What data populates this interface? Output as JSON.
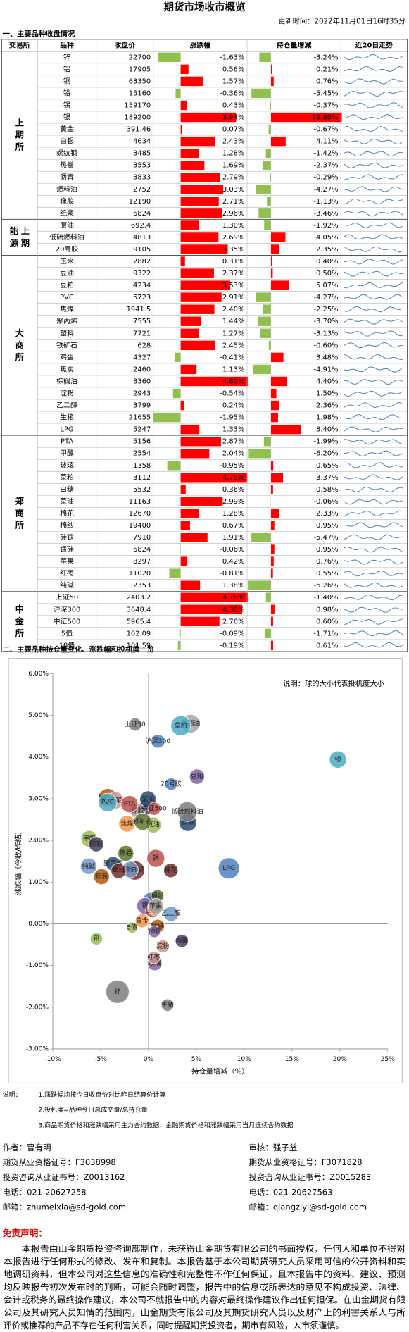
{
  "header": {
    "title": "期货市场收市概览",
    "update_time": "更新时间：2022年11月01日16时35分"
  },
  "section1": "一、主要品种收盘情况",
  "table": {
    "columns": [
      "交易所",
      "品种",
      "收盘价",
      "涨跌幅",
      "持仓量增减",
      "近20日走势"
    ],
    "groups": [
      {
        "exchange": [
          "上",
          "期",
          "所"
        ],
        "rows": [
          {
            "name": "锌",
            "close": "22700",
            "change": -1.63,
            "change_label": "-1.63%",
            "oi": -3.24,
            "oi_label": "-3.24%",
            "spec": 2.4
          },
          {
            "name": "铝",
            "close": "17905",
            "change": 0.56,
            "change_label": "0.56%",
            "oi": 0.21,
            "oi_label": "0.21%",
            "spec": 1.3
          },
          {
            "name": "铜",
            "close": "63350",
            "change": 1.57,
            "change_label": "1.57%",
            "oi": 0.76,
            "oi_label": "0.76%",
            "spec": 1.6
          },
          {
            "name": "铅",
            "close": "15160",
            "change": -0.36,
            "change_label": "-0.36%",
            "oi": -5.45,
            "oi_label": "-5.45%",
            "spec": 0.8
          },
          {
            "name": "锡",
            "close": "159170",
            "change": 0.43,
            "change_label": "0.43%",
            "oi": -0.37,
            "oi_label": "-0.37%",
            "spec": 1.4
          },
          {
            "name": "银",
            "close": "189200",
            "change": 3.94,
            "change_label": "3.94%",
            "oi": 19.8,
            "oi_label": "19.80%",
            "spec": 1.5
          },
          {
            "name": "黄金",
            "close": "391.46",
            "change": 0.07,
            "change_label": "0.07%",
            "oi": -0.67,
            "oi_label": "-0.67%",
            "spec": 1.0
          },
          {
            "name": "白银",
            "close": "4634",
            "change": 2.43,
            "change_label": "2.43%",
            "oi": 4.11,
            "oi_label": "4.11%",
            "spec": 1.6
          },
          {
            "name": "螺纹钢",
            "close": "3485",
            "change": 1.28,
            "change_label": "1.28%",
            "oi": -1.42,
            "oi_label": "-1.42%",
            "spec": 1.8
          },
          {
            "name": "热卷",
            "close": "3553",
            "change": 1.69,
            "change_label": "1.69%",
            "oi": -2.37,
            "oi_label": "-2.37%",
            "spec": 1.3
          },
          {
            "name": "沥青",
            "close": "3833",
            "change": 2.79,
            "change_label": "2.79%",
            "oi": -0.29,
            "oi_label": "-0.29%",
            "spec": 1.2
          },
          {
            "name": "燃料油",
            "close": "2752",
            "change": 3.03,
            "change_label": "3.03%",
            "oi": -4.27,
            "oi_label": "-4.27%",
            "spec": 1.6
          },
          {
            "name": "橡胶",
            "close": "12190",
            "change": 2.71,
            "change_label": "2.71%",
            "oi": -1.13,
            "oi_label": "-1.13%",
            "spec": 1.2
          },
          {
            "name": "纸浆",
            "close": "6824",
            "change": 2.96,
            "change_label": "2.96%",
            "oi": -3.46,
            "oi_label": "-3.46%",
            "spec": 1.5
          }
        ]
      },
      {
        "exchange": [
          "能 上",
          "源 期"
        ],
        "rows": [
          {
            "name": "原油",
            "close": "692.4",
            "change": 1.3,
            "change_label": "1.30%",
            "oi": -1.92,
            "oi_label": "-1.92%",
            "spec": 1.4
          },
          {
            "name": "低硫燃料油",
            "close": "4813",
            "change": 2.69,
            "change_label": "2.69%",
            "oi": 4.05,
            "oi_label": "4.05%",
            "spec": 1.9
          },
          {
            "name": "20号胶",
            "close": "9105",
            "change": 3.35,
            "change_label": "3.35%",
            "oi": 2.35,
            "oi_label": "2.35%",
            "spec": 0.8
          }
        ]
      },
      {
        "exchange": [
          "大",
          "商",
          "所"
        ],
        "rows": [
          {
            "name": "玉米",
            "close": "2882",
            "change": 0.31,
            "change_label": "0.31%",
            "oi": 0.4,
            "oi_label": "0.40%",
            "spec": 1.0
          },
          {
            "name": "豆油",
            "close": "9322",
            "change": 2.37,
            "change_label": "2.37%",
            "oi": 0.5,
            "oi_label": "0.50%",
            "spec": 1.3
          },
          {
            "name": "豆粕",
            "close": "4234",
            "change": 3.53,
            "change_label": "3.53%",
            "oi": 5.07,
            "oi_label": "5.07%",
            "spec": 1.2
          },
          {
            "name": "PVC",
            "close": "5723",
            "change": 2.91,
            "change_label": "2.91%",
            "oi": -4.27,
            "oi_label": "-4.27%",
            "spec": 1.7
          },
          {
            "name": "焦煤",
            "close": "1941.5",
            "change": 2.4,
            "change_label": "2.40%",
            "oi": -2.25,
            "oi_label": "-2.25%",
            "spec": 1.4
          },
          {
            "name": "聚丙烯",
            "close": "7555",
            "change": 1.44,
            "change_label": "1.44%",
            "oi": -3.7,
            "oi_label": "-3.70%",
            "spec": 1.1
          },
          {
            "name": "塑料",
            "close": "7721",
            "change": 1.27,
            "change_label": "1.27%",
            "oi": -3.13,
            "oi_label": "-3.13%",
            "spec": 1.2
          },
          {
            "name": "铁矿石",
            "close": "628",
            "change": 2.45,
            "change_label": "2.45%",
            "oi": -0.6,
            "oi_label": "-0.60%",
            "spec": 1.5
          },
          {
            "name": "鸡蛋",
            "close": "4327",
            "change": -0.41,
            "change_label": "-0.41%",
            "oi": 3.48,
            "oi_label": "3.48%",
            "spec": 0.9
          },
          {
            "name": "焦炭",
            "close": "2460",
            "change": 1.13,
            "change_label": "1.13%",
            "oi": -4.91,
            "oi_label": "-4.91%",
            "spec": 1.3
          },
          {
            "name": "棕榈油",
            "close": "8360",
            "change": 4.8,
            "change_label": "4.80%",
            "oi": 4.4,
            "oi_label": "4.40%",
            "spec": 1.7
          },
          {
            "name": "淀粉",
            "close": "2943",
            "change": -0.54,
            "change_label": "-0.54%",
            "oi": 1.5,
            "oi_label": "1.50%",
            "spec": 0.9
          },
          {
            "name": "乙二醇",
            "close": "3799",
            "change": 0.24,
            "change_label": "0.24%",
            "oi": 2.36,
            "oi_label": "2.36%",
            "spec": 1.2
          },
          {
            "name": "生猪",
            "close": "21655",
            "change": -1.95,
            "change_label": "-1.95%",
            "oi": 1.98,
            "oi_label": "1.98%",
            "spec": 0.8
          },
          {
            "name": "LPG",
            "close": "5247",
            "change": 1.33,
            "change_label": "1.33%",
            "oi": 8.4,
            "oi_label": "8.40%",
            "spec": 2.1
          }
        ]
      },
      {
        "exchange": [
          "郑",
          "商",
          "所"
        ],
        "rows": [
          {
            "name": "PTA",
            "close": "5156",
            "change": 2.87,
            "change_label": "2.87%",
            "oi": -1.99,
            "oi_label": "-1.99%",
            "spec": 1.5
          },
          {
            "name": "甲醇",
            "close": "2554",
            "change": 2.04,
            "change_label": "2.04%",
            "oi": -6.2,
            "oi_label": "-6.20%",
            "spec": 1.4
          },
          {
            "name": "玻璃",
            "close": "1358",
            "change": -0.95,
            "change_label": "-0.95%",
            "oi": 0.65,
            "oi_label": "0.65%",
            "spec": 1.1
          },
          {
            "name": "菜粕",
            "close": "3112",
            "change": 4.75,
            "change_label": "4.75%",
            "oi": 3.37,
            "oi_label": "3.37%",
            "spec": 1.9
          },
          {
            "name": "白糖",
            "close": "5532",
            "change": 0.36,
            "change_label": "0.36%",
            "oi": 0.58,
            "oi_label": "0.58%",
            "spec": 0.9
          },
          {
            "name": "菜油",
            "close": "11163",
            "change": 2.99,
            "change_label": "2.99%",
            "oi": -0.06,
            "oi_label": "-0.06%",
            "spec": 1.4
          },
          {
            "name": "棉花",
            "close": "12670",
            "change": 1.28,
            "change_label": "1.28%",
            "oi": 2.33,
            "oi_label": "2.33%",
            "spec": 1.1
          },
          {
            "name": "棉纱",
            "close": "19400",
            "change": 0.67,
            "change_label": "0.67%",
            "oi": 0.95,
            "oi_label": "0.95%",
            "spec": 0.8
          },
          {
            "name": "硅铁",
            "close": "7910",
            "change": 1.91,
            "change_label": "1.91%",
            "oi": -5.47,
            "oi_label": "-5.47%",
            "spec": 1.2
          },
          {
            "name": "锰硅",
            "close": "6824",
            "change": -0.06,
            "change_label": "-0.06%",
            "oi": 0.95,
            "oi_label": "0.95%",
            "spec": 1.0
          },
          {
            "name": "苹果",
            "close": "8297",
            "change": 0.42,
            "change_label": "0.42%",
            "oi": 0.76,
            "oi_label": "0.76%",
            "spec": 1.3
          },
          {
            "name": "红枣",
            "close": "11020",
            "change": -0.81,
            "change_label": "-0.81%",
            "oi": 0.55,
            "oi_label": "0.55%",
            "spec": 0.8
          },
          {
            "name": "纯碱",
            "close": "2353",
            "change": 1.38,
            "change_label": "1.38%",
            "oi": -6.26,
            "oi_label": "-6.26%",
            "spec": 1.4
          }
        ]
      },
      {
        "exchange": [
          "中",
          "金",
          "所"
        ],
        "rows": [
          {
            "name": "上证50",
            "close": "2403.2",
            "change": 4.78,
            "change_label": "4.78%",
            "oi": -1.4,
            "oi_label": "-1.40%",
            "spec": 0.9
          },
          {
            "name": "沪深300",
            "close": "3648.4",
            "change": 4.38,
            "change_label": "4.38%",
            "oi": 0.98,
            "oi_label": "0.98%",
            "spec": 1.0
          },
          {
            "name": "中证500",
            "close": "5965.4",
            "change": 2.76,
            "change_label": "2.76%",
            "oi": 0.6,
            "oi_label": "0.60%",
            "spec": 0.9
          },
          {
            "name": "5债",
            "close": "102.09",
            "change": -0.09,
            "change_label": "-0.09%",
            "oi": -1.71,
            "oi_label": "-1.71%",
            "spec": 0.6
          },
          {
            "name": "10债",
            "close": "101.59",
            "change": -0.19,
            "change_label": "-0.19%",
            "oi": 0.61,
            "oi_label": "0.61%",
            "spec": 0.7
          }
        ]
      }
    ],
    "up_color": "#ff0000",
    "down_color": "#92c050",
    "spark_color": "#4a7ebb"
  },
  "section2": "二、主要品种持仓量变化、涨跌幅和投机度一览",
  "chart": {
    "type": "bubble",
    "note": "说明：球的大小代表投机度大小",
    "x_label": "持仓量增减（%）",
    "y_label": "涨跌幅（今收/昨结）",
    "xlim": [
      -10,
      25
    ],
    "ylim": [
      -3,
      6
    ],
    "xticks": [
      {
        "value": -10,
        "label": "-10%"
      },
      {
        "value": -5,
        "label": "-5%"
      },
      {
        "value": 0,
        "label": "0%"
      },
      {
        "value": 5,
        "label": "5%"
      },
      {
        "value": 10,
        "label": "10%"
      },
      {
        "value": 15,
        "label": "15%"
      },
      {
        "value": 20,
        "label": "20%"
      },
      {
        "value": 25,
        "label": "25%"
      }
    ],
    "yticks": [
      {
        "value": -3,
        "label": "-3.00%"
      },
      {
        "value": -2,
        "label": "-2.00%"
      },
      {
        "value": -1,
        "label": "-1.00%"
      },
      {
        "value": 0,
        "label": "0.00%"
      },
      {
        "value": 1,
        "label": "1.00%"
      },
      {
        "value": 2,
        "label": "2.00%"
      },
      {
        "value": 3,
        "label": "3.00%"
      },
      {
        "value": 4,
        "label": "4.00%"
      },
      {
        "value": 5,
        "label": "5.00%"
      },
      {
        "value": 6,
        "label": "6.00%"
      }
    ],
    "palette": [
      "#7f7f7f",
      "#4f81bd",
      "#c0504d",
      "#9bbb59",
      "#8064a2",
      "#4bacc6",
      "#f79646",
      "#2c4d75",
      "#772c2a",
      "#5f7530",
      "#4d3b62",
      "#b65708",
      "#a5a5a5",
      "#d19392",
      "#729aca"
    ]
  },
  "notes": {
    "title": "说明：",
    "items": [
      "1.涨跌幅均按今日收盘价对比昨日结算价计算",
      "2.投机度=品种今日总成交量/总持仓量",
      "3.商品期货价格和涨跌幅采用主力合约数据，金融期货价格和涨跌幅采用当月连续合约数据"
    ]
  },
  "authors": [
    [
      "作者：曹有明",
      "期货从业资格证号：F3038998",
      "投资咨询从业证书号：Z0013162",
      "电话：021-20627258",
      "邮箱：zhumeixia@sd-gold.com"
    ],
    [
      "审核：强子益",
      "期货从业资格证号：F3071828",
      "投资咨询从业证书号：Z0015283",
      "电话：021-20627563",
      "邮箱：qiangziyi@sd-gold.com"
    ]
  ],
  "disclaimer": {
    "title": "免责声明：",
    "lines": [
      "　　本报告由山金期货投资咨询部制作，未获得山金期货有限公司的书面授权，任何人和单位不得对",
      "本报告进行任何形式的修改、发布和复制。本报告基于本公司期货研究人员采用可信的公开资料和实",
      "地调研资料，但本公司对这些信息的准确性和完整性不作任何保证，且本报告中的资料、建议、预测",
      "均反映报告初次发布时的判断，可能会随时调整，报告中的信息或所表达的意见不构成投资、法律、",
      "会计或税务的最终操作建议，本公司不就报告中的内容对最终操作建议作出任何担保。在山金期货有限",
      "公司及其研究人员知情的范围内，山金期货有限公司及其期货研究人员以及财产上的利害关系人与所",
      "评价或推荐的产品不存在任何利害关系，同时提醒期货投资者，期市有风险，入市须谨慎。"
    ]
  }
}
